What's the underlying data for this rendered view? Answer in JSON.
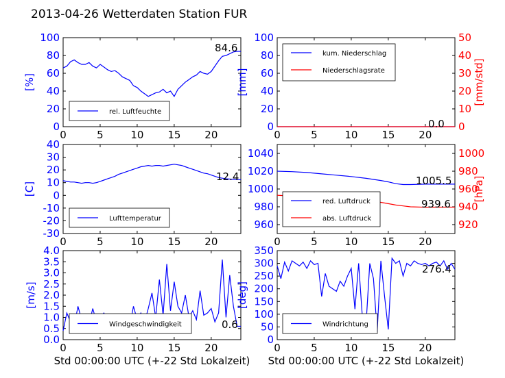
{
  "title": "2013-04-26 Wetterdaten Station FUR",
  "chart_data": [
    {
      "type": "line",
      "ylabel": "[%]",
      "ylim": [
        0,
        100
      ],
      "yticks": [
        "0",
        "20",
        "40",
        "60",
        "80",
        "100"
      ],
      "xlim": [
        0,
        24
      ],
      "xticks": [
        "0",
        "5",
        "10",
        "15",
        "20"
      ],
      "xlabel": "",
      "legend": "bottom-left",
      "annotation": "84.6",
      "series": [
        {
          "name": "rel. Luftfeuchte",
          "color": "#0000ff",
          "x": [
            0,
            0.5,
            1,
            1.5,
            2,
            2.5,
            3,
            3.5,
            4,
            4.5,
            5,
            5.5,
            6,
            6.5,
            7,
            7.5,
            8,
            8.5,
            9,
            9.5,
            10,
            10.5,
            11,
            11.5,
            12,
            12.5,
            13,
            13.5,
            14,
            14.5,
            15,
            15.5,
            16,
            16.5,
            17,
            17.5,
            18,
            18.5,
            19,
            19.5,
            20,
            20.5,
            21,
            21.5,
            22,
            22.5,
            23,
            23.5,
            24
          ],
          "y": [
            66,
            68,
            73,
            75,
            72,
            70,
            70,
            72,
            68,
            66,
            70,
            67,
            64,
            62,
            63,
            60,
            56,
            54,
            52,
            46,
            44,
            40,
            37,
            34,
            36,
            38,
            39,
            42,
            38,
            40,
            34,
            42,
            46,
            50,
            53,
            56,
            58,
            62,
            60,
            59,
            62,
            68,
            74,
            79,
            80,
            82,
            84,
            84.6,
            84.6
          ]
        }
      ]
    },
    {
      "type": "line",
      "ylabel": "[mm]",
      "ylim": [
        0,
        100
      ],
      "yticks": [
        "0",
        "20",
        "40",
        "60",
        "80",
        "100"
      ],
      "ylabel2": "[mm/std]",
      "ylim2": [
        0,
        50
      ],
      "yticks2": [
        "0",
        "10",
        "20",
        "30",
        "40",
        "50"
      ],
      "xlim": [
        0,
        24
      ],
      "xticks": [
        "0",
        "5",
        "10",
        "15",
        "20"
      ],
      "xlabel": "",
      "legend": "top-left",
      "annotation": "0.0",
      "series": [
        {
          "name": "kum. Niederschlag",
          "color": "#0000ff",
          "x": [
            0,
            24
          ],
          "y": [
            0,
            0
          ]
        },
        {
          "name": "Niederschlagsrate",
          "color": "#ff0000",
          "x": [
            0,
            24
          ],
          "y": [
            0,
            0
          ]
        }
      ]
    },
    {
      "type": "line",
      "ylabel": "[C]",
      "ylim": [
        -30,
        40
      ],
      "yticks": [
        "-30",
        "-20",
        "-10",
        "0",
        "10",
        "20",
        "30",
        "40"
      ],
      "xlim": [
        0,
        24
      ],
      "xticks": [
        "0",
        "5",
        "10",
        "15",
        "20"
      ],
      "xlabel": "",
      "legend": "bottom-left",
      "annotation": "12.4",
      "series": [
        {
          "name": "Lufttemperatur",
          "color": "#0000ff",
          "x": [
            0,
            0.5,
            1,
            1.5,
            2,
            2.5,
            3,
            3.5,
            4,
            4.5,
            5,
            5.5,
            6,
            6.5,
            7,
            7.5,
            8,
            8.5,
            9,
            9.5,
            10,
            10.5,
            11,
            11.5,
            12,
            12.5,
            13,
            13.5,
            14,
            14.5,
            15,
            15.5,
            16,
            16.5,
            17,
            17.5,
            18,
            18.5,
            19,
            19.5,
            20,
            20.5,
            21,
            21.5,
            22,
            22.5,
            23,
            23.5,
            24
          ],
          "y": [
            11.5,
            11,
            10.5,
            10.5,
            10,
            9.5,
            10,
            10,
            9.5,
            10,
            11,
            12,
            13,
            14,
            15,
            16.5,
            17.5,
            18.5,
            19.5,
            20.5,
            21.5,
            22.5,
            23,
            23.5,
            23,
            23.5,
            23.5,
            23,
            23.5,
            24,
            24.5,
            24,
            23.5,
            22.5,
            21.5,
            20.5,
            19.5,
            18.5,
            17.5,
            17,
            16,
            15,
            14,
            13.5,
            13,
            12.8,
            12.6,
            12.4,
            12.4
          ]
        }
      ]
    },
    {
      "type": "line",
      "ylabel": "",
      "ylim": [
        950,
        1050
      ],
      "yticks": [
        "960",
        "980",
        "1000",
        "1020",
        "1040"
      ],
      "ylabel2": "[hPa]",
      "ylim2": [
        910,
        1010
      ],
      "yticks2": [
        "920",
        "940",
        "960",
        "980",
        "1000"
      ],
      "xlim": [
        0,
        24
      ],
      "xticks": [
        "0",
        "5",
        "10",
        "15",
        "20"
      ],
      "xlabel": "",
      "legend": "bottom-left",
      "annotation": "1005.5",
      "annotation2": "939.6",
      "series": [
        {
          "name": "red. Luftdruck",
          "color": "#0000ff",
          "axis": "left",
          "x": [
            0,
            2,
            4,
            6,
            8,
            10,
            12,
            14,
            15,
            16,
            17,
            18,
            20,
            22,
            24
          ],
          "y": [
            1020,
            1019.5,
            1018.5,
            1017,
            1015.5,
            1014,
            1012,
            1009.5,
            1008,
            1006,
            1005,
            1005,
            1005.5,
            1005.5,
            1005.5
          ]
        },
        {
          "name": "abs. Luftdruck",
          "color": "#ff0000",
          "axis": "right",
          "x": [
            0,
            2,
            4,
            6,
            8,
            10,
            12,
            14,
            15,
            16,
            17,
            18,
            20,
            22,
            24
          ],
          "y": [
            953,
            952,
            951,
            950.5,
            950,
            949,
            947.5,
            945,
            943.5,
            942,
            941,
            940,
            939.5,
            939.6,
            939.6
          ]
        }
      ]
    },
    {
      "type": "line",
      "ylabel": "[m/s]",
      "ylim": [
        0,
        4
      ],
      "yticks": [
        "0.0",
        "0.5",
        "1.0",
        "1.5",
        "2.0",
        "2.5",
        "3.0",
        "3.5",
        "4.0"
      ],
      "xlim": [
        0,
        24
      ],
      "xticks": [
        "0",
        "5",
        "10",
        "15",
        "20"
      ],
      "xlabel": "Std 00:00:00 UTC (+-22 Std Lokalzeit)",
      "legend": "bottom-left",
      "annotation": "0.6",
      "series": [
        {
          "name": "Windgeschwindigkeit",
          "color": "#0000ff",
          "x": [
            0,
            0.5,
            1,
            1.5,
            2,
            2.5,
            3,
            3.5,
            4,
            4.5,
            5,
            5.5,
            6,
            6.5,
            7,
            7.5,
            8,
            8.5,
            9,
            9.5,
            10,
            10.5,
            11,
            11.5,
            12,
            12.5,
            13,
            13.5,
            14,
            14.5,
            15,
            15.5,
            16,
            16.5,
            17,
            17.5,
            18,
            18.5,
            19,
            19.5,
            20,
            20.5,
            21,
            21.5,
            22,
            22.5,
            23,
            23.5,
            24
          ],
          "y": [
            0.4,
            1.2,
            0.8,
            0.6,
            1.5,
            0.9,
            1.1,
            0.7,
            1.4,
            0.8,
            1.0,
            1.2,
            0.9,
            0.8,
            0.6,
            0.8,
            0.7,
            0.5,
            0.6,
            1.5,
            0.9,
            1.2,
            0.8,
            1.4,
            2.1,
            1.0,
            2.7,
            1.1,
            3.4,
            1.3,
            2.6,
            1.5,
            1.2,
            2.0,
            1.0,
            1.3,
            0.9,
            2.2,
            1.1,
            1.2,
            1.4,
            0.8,
            1.2,
            3.6,
            1.0,
            2.9,
            1.5,
            0.6,
            0.6
          ]
        }
      ]
    },
    {
      "type": "line",
      "ylabel": "[deg]",
      "ylim": [
        0,
        350
      ],
      "yticks": [
        "0",
        "50",
        "100",
        "150",
        "200",
        "250",
        "300",
        "350"
      ],
      "xlim": [
        0,
        24
      ],
      "xticks": [
        "0",
        "5",
        "10",
        "15",
        "20"
      ],
      "xlabel": "Std 00:00:00 UTC (+-22 Std Lokalzeit)",
      "legend": "bottom-left",
      "annotation": "276.4",
      "series": [
        {
          "name": "Windrichtung",
          "color": "#0000ff",
          "x": [
            0,
            0.5,
            1,
            1.5,
            2,
            2.5,
            3,
            3.5,
            4,
            4.5,
            5,
            5.5,
            6,
            6.5,
            7,
            7.5,
            8,
            8.5,
            9,
            9.5,
            10,
            10.5,
            11,
            11.5,
            12,
            12.5,
            13,
            13.5,
            14,
            14.5,
            15,
            15.5,
            16,
            16.5,
            17,
            17.5,
            18,
            18.5,
            19,
            19.5,
            20,
            20.5,
            21,
            21.5,
            22,
            22.5,
            23,
            23.5,
            24
          ],
          "y": [
            290,
            240,
            305,
            270,
            310,
            300,
            290,
            305,
            280,
            310,
            295,
            300,
            170,
            260,
            210,
            200,
            190,
            230,
            210,
            250,
            280,
            120,
            300,
            90,
            60,
            300,
            240,
            30,
            310,
            170,
            40,
            320,
            300,
            310,
            250,
            300,
            290,
            310,
            300,
            295,
            300,
            290,
            300,
            305,
            290,
            310,
            276.4,
            300,
            276.4
          ]
        }
      ]
    }
  ]
}
